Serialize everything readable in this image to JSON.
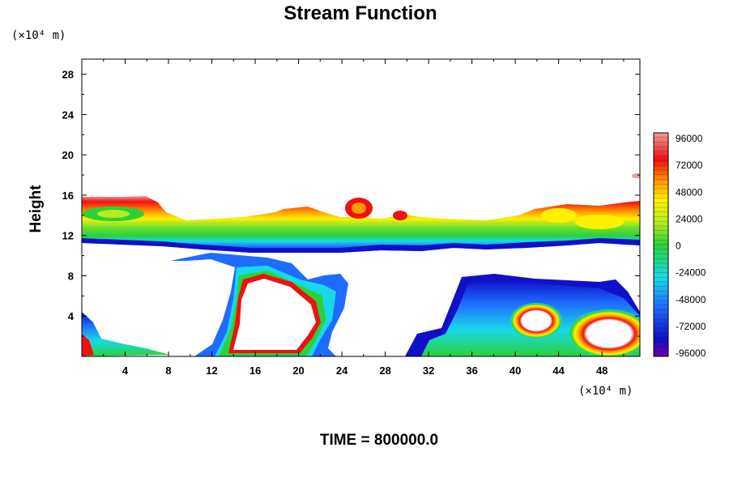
{
  "chart_data": {
    "type": "heatmap",
    "title": "Stream Function",
    "ylabel": "Height",
    "x_unit": "(×10⁴ m)",
    "y_unit": "(×10⁴ m)",
    "xlim": [
      0,
      51.5
    ],
    "ylim": [
      0,
      29.5
    ],
    "x_ticks": [
      "4",
      "8",
      "12",
      "16",
      "20",
      "24",
      "28",
      "32",
      "36",
      "40",
      "44",
      "48"
    ],
    "y_ticks": [
      "4",
      "8",
      "12",
      "16",
      "20",
      "24",
      "28"
    ],
    "colorbar": {
      "min": -96000,
      "max": 96000,
      "labels": [
        "96000",
        "72000",
        "48000",
        "24000",
        "0",
        "-24000",
        "-48000",
        "-72000",
        "-96000"
      ]
    },
    "regions": [
      {
        "name": "upper-band",
        "x_range": [
          0,
          51.5
        ],
        "y_range": [
          10.5,
          16
        ],
        "value_range": [
          -96000,
          96000
        ]
      },
      {
        "name": "lower-left-cell",
        "x_range": [
          0,
          4
        ],
        "y_range": [
          0,
          4.5
        ],
        "value_range": [
          -96000,
          96000
        ]
      },
      {
        "name": "central-cell",
        "x_range": [
          12,
          25
        ],
        "y_range": [
          0,
          10
        ],
        "value_range": [
          -96000,
          96000
        ]
      },
      {
        "name": "right-cell",
        "x_range": [
          30,
          51.5
        ],
        "y_range": [
          0,
          8.3
        ],
        "value_range": [
          -96000,
          96000
        ]
      }
    ],
    "grid": false
  },
  "footer": {
    "time_label": "TIME = 800000.0"
  }
}
